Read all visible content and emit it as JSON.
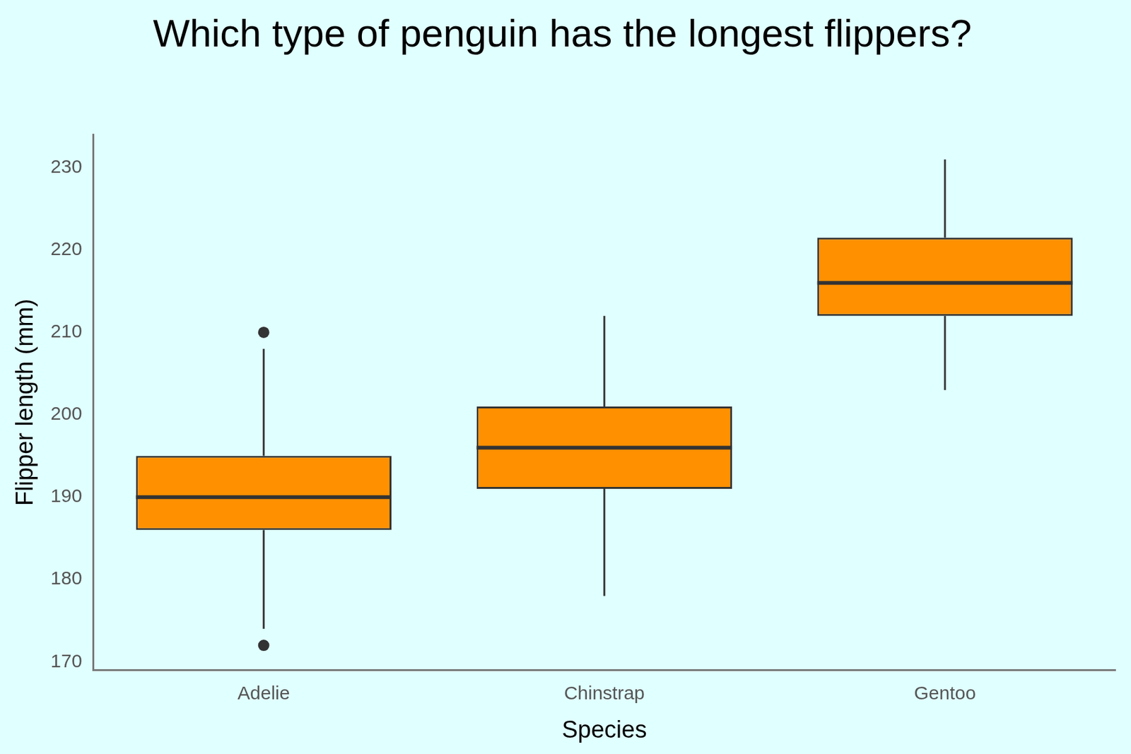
{
  "chart_data": {
    "type": "box",
    "title": "Which type of penguin has the longest flippers?",
    "x_label": "Species",
    "y_label": "Flipper length (mm)",
    "categories": [
      "Adelie",
      "Chinstrap",
      "Gentoo"
    ],
    "values": [
      {
        "whislo": 174,
        "q1": 186,
        "med": 190,
        "q3": 195,
        "whishi": 208,
        "fliers": [
          172,
          210
        ]
      },
      {
        "whislo": 178,
        "q1": 191,
        "med": 196,
        "q3": 201,
        "whishi": 212,
        "fliers": []
      },
      {
        "whislo": 203,
        "q1": 212,
        "med": 216,
        "q3": 221.5,
        "whishi": 231,
        "fliers": []
      }
    ],
    "color": "#ff9000",
    "ylim": [
      169,
      234
    ],
    "yticks": [
      170,
      180,
      190,
      200,
      210,
      220,
      230
    ],
    "grid": false
  }
}
